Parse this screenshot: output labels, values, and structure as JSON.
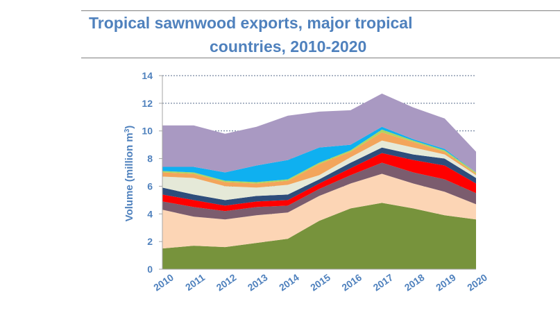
{
  "chart_data": {
    "type": "area",
    "stacked": true,
    "title_line1": "Tropical sawnwood exports, major tropical",
    "title_line2": "countries, 2010-2020",
    "ylabel": "Volume (million m³)",
    "ylim": [
      0,
      14
    ],
    "yticks": [
      "0",
      "2",
      "4",
      "6",
      "8",
      "10",
      "12",
      "14"
    ],
    "x": [
      "2010",
      "2011",
      "2012",
      "2013",
      "2014",
      "2015",
      "2016",
      "2017",
      "2018",
      "2019",
      "2020"
    ],
    "grid": "horizontal dashed",
    "series": [
      {
        "color": "#77933c",
        "values": [
          1.5,
          1.7,
          1.6,
          1.9,
          2.2,
          3.5,
          4.4,
          4.8,
          4.4,
          3.9,
          3.6
        ]
      },
      {
        "color": "#fcd5b5",
        "values": [
          2.8,
          2.1,
          2.0,
          2.0,
          1.9,
          1.8,
          1.8,
          2.1,
          1.8,
          1.7,
          1.1
        ]
      },
      {
        "color": "#7b5c6e",
        "values": [
          0.6,
          0.7,
          0.6,
          0.6,
          0.5,
          0.5,
          0.6,
          0.8,
          0.8,
          0.9,
          0.8
        ]
      },
      {
        "color": "#ff0000",
        "values": [
          0.5,
          0.5,
          0.4,
          0.4,
          0.4,
          0.4,
          0.5,
          0.7,
          0.9,
          1.0,
          0.7
        ]
      },
      {
        "color": "#2e4d7b",
        "values": [
          0.5,
          0.4,
          0.4,
          0.4,
          0.4,
          0.3,
          0.4,
          0.4,
          0.4,
          0.5,
          0.4
        ]
      },
      {
        "color": "#e5e9d8",
        "values": [
          0.8,
          1.2,
          1.0,
          0.6,
          0.7,
          0.3,
          0.4,
          0.5,
          0.5,
          0.3,
          0.2
        ]
      },
      {
        "color": "#f3a55b",
        "values": [
          0.3,
          0.3,
          0.3,
          0.3,
          0.3,
          0.8,
          0.4,
          0.6,
          0.4,
          0.2,
          0.1
        ]
      },
      {
        "color": "#b0d45f",
        "values": [
          0.1,
          0.1,
          0.1,
          0.1,
          0.1,
          0.1,
          0.1,
          0.2,
          0.1,
          0.1,
          0.1
        ]
      },
      {
        "color": "#0fb0f0",
        "values": [
          0.3,
          0.4,
          0.6,
          1.2,
          1.4,
          1.1,
          0.4,
          0.2,
          0.1,
          0.1,
          0.0
        ]
      },
      {
        "color": "#a999c2",
        "values": [
          3.0,
          3.0,
          2.8,
          2.8,
          3.2,
          2.6,
          2.5,
          2.4,
          2.3,
          2.2,
          1.5
        ]
      }
    ]
  }
}
